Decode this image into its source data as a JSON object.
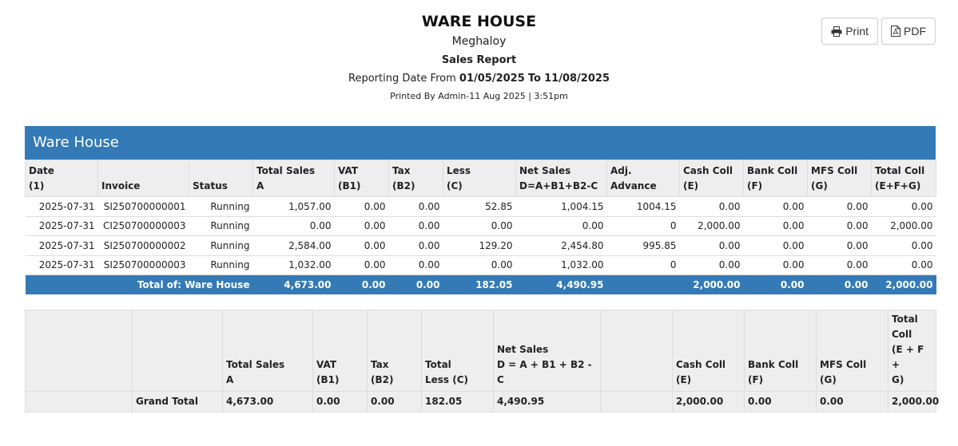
{
  "header": {
    "company": "WARE HOUSE",
    "branch": "Meghaloy",
    "report_title": "Sales Report",
    "period_prefix": "Reporting Date From",
    "date_from": "01/05/2025",
    "to_word": "To",
    "date_to": "11/08/2025",
    "printed_by": "Printed By Admin-11 Aug 2025 | 3:51pm"
  },
  "actions": {
    "print_label": "Print",
    "pdf_label": "PDF"
  },
  "section": {
    "title": "Ware House"
  },
  "columns": {
    "date": [
      "Date",
      "(1)"
    ],
    "invoice": "Invoice",
    "status": "Status",
    "total_sales": [
      "Total Sales",
      "A"
    ],
    "vat": [
      "VAT",
      "(B1)"
    ],
    "tax": [
      "Tax",
      "(B2)"
    ],
    "less": [
      "Less",
      "(C)"
    ],
    "net_sales": [
      "Net Sales",
      "D=A+B1+B2-C"
    ],
    "adj_advance": "Adj. Advance",
    "cash_coll": [
      "Cash Coll",
      "(E)"
    ],
    "bank_coll": [
      "Bank Coll",
      "(F)"
    ],
    "mfs_coll": [
      "MFS Coll",
      "(G)"
    ],
    "total_coll": [
      "Total Coll",
      "(E+F+G)"
    ]
  },
  "rows": [
    {
      "date": "2025-07-31",
      "invoice": "SI250700000001",
      "status": "Running",
      "total_sales": "1,057.00",
      "vat": "0.00",
      "tax": "0.00",
      "less": "52.85",
      "net_sales": "1,004.15",
      "adj_advance": "1004.15",
      "cash_coll": "0.00",
      "bank_coll": "0.00",
      "mfs_coll": "0.00",
      "total_coll": "0.00"
    },
    {
      "date": "2025-07-31",
      "invoice": "CI250700000003",
      "status": "Running",
      "total_sales": "0.00",
      "vat": "0.00",
      "tax": "0.00",
      "less": "0.00",
      "net_sales": "0.00",
      "adj_advance": "0",
      "cash_coll": "2,000.00",
      "bank_coll": "0.00",
      "mfs_coll": "0.00",
      "total_coll": "2,000.00"
    },
    {
      "date": "2025-07-31",
      "invoice": "SI250700000002",
      "status": "Running",
      "total_sales": "2,584.00",
      "vat": "0.00",
      "tax": "0.00",
      "less": "129.20",
      "net_sales": "2,454.80",
      "adj_advance": "995.85",
      "cash_coll": "0.00",
      "bank_coll": "0.00",
      "mfs_coll": "0.00",
      "total_coll": "0.00"
    },
    {
      "date": "2025-07-31",
      "invoice": "SI250700000003",
      "status": "Running",
      "total_sales": "1,032.00",
      "vat": "0.00",
      "tax": "0.00",
      "less": "0.00",
      "net_sales": "1,032.00",
      "adj_advance": "0",
      "cash_coll": "0.00",
      "bank_coll": "0.00",
      "mfs_coll": "0.00",
      "total_coll": "0.00"
    }
  ],
  "section_total": {
    "label": "Total of: Ware House",
    "total_sales": "4,673.00",
    "vat": "0.00",
    "tax": "0.00",
    "less": "182.05",
    "net_sales": "4,490.95",
    "adj_advance": "",
    "cash_coll": "2,000.00",
    "bank_coll": "0.00",
    "mfs_coll": "0.00",
    "total_coll": "2,000.00"
  },
  "grand_total": {
    "headers": {
      "total_sales": [
        "Total Sales",
        "A"
      ],
      "vat": [
        "VAT",
        "(B1)"
      ],
      "tax": [
        "Tax",
        "(B2)"
      ],
      "total_less": [
        "Total",
        "Less (C)"
      ],
      "net_sales": [
        "Net Sales",
        "D = A + B1 + B2 - C"
      ],
      "cash_coll": [
        "Cash Coll",
        "(E)"
      ],
      "bank_coll": [
        "Bank Coll",
        "(F)"
      ],
      "mfs_coll": [
        "MFS Coll",
        "(G)"
      ],
      "total_coll": [
        "Total",
        "Coll",
        "(E + F +",
        "G)"
      ]
    },
    "label": "Grand Total",
    "total_sales": "4,673.00",
    "vat": "0.00",
    "tax": "0.00",
    "total_less": "182.05",
    "net_sales": "4,490.95",
    "cash_coll": "2,000.00",
    "bank_coll": "0.00",
    "mfs_coll": "0.00",
    "total_coll": "2,000.00"
  }
}
